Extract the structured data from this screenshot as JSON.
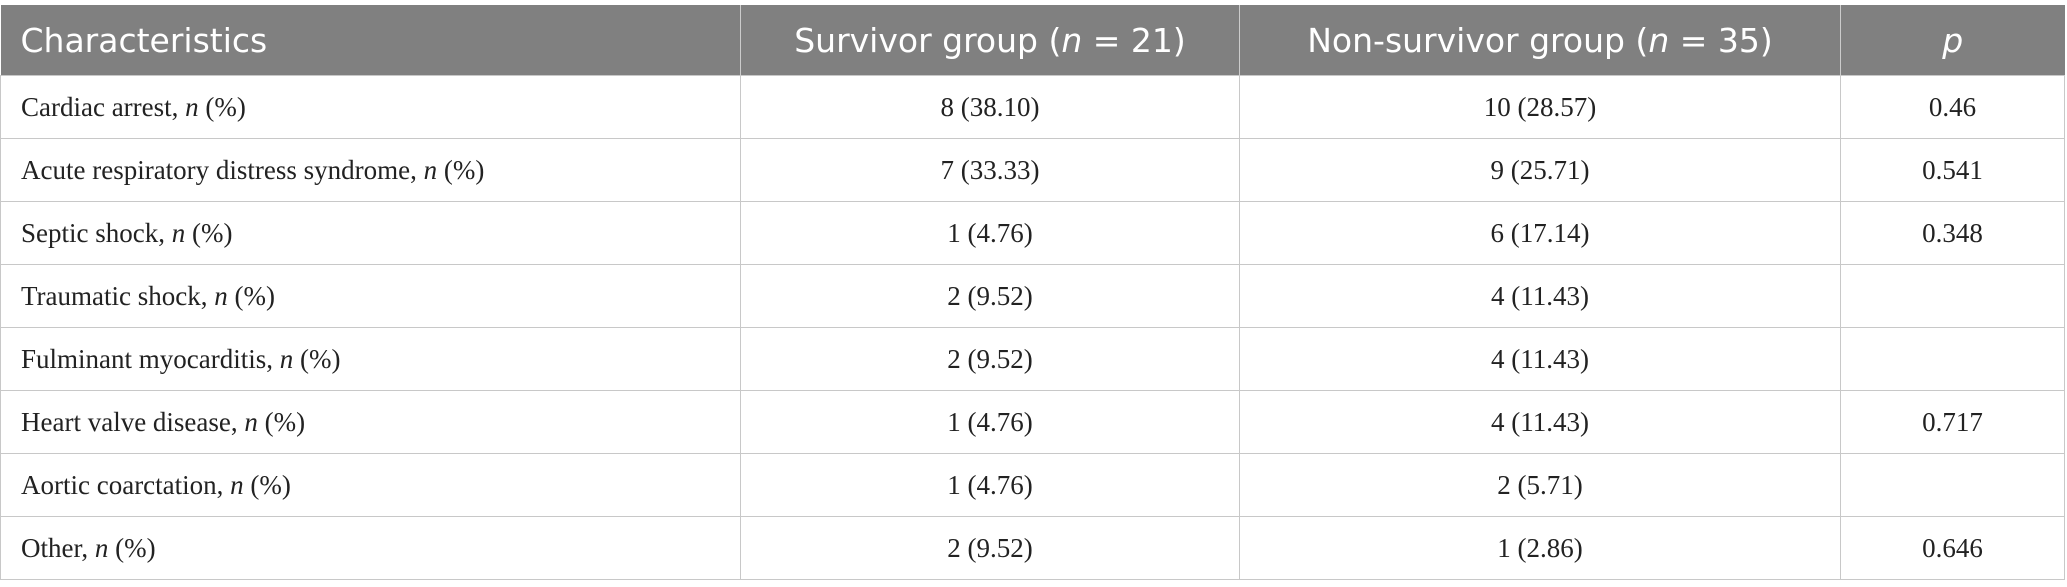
{
  "table": {
    "header": [
      [
        "Characteristics"
      ],
      [
        "Survivor group (",
        "n",
        " = 21)"
      ],
      [
        "Non-survivor group (",
        "n",
        " = 35)"
      ],
      [
        "",
        "p"
      ]
    ],
    "rows": [
      {
        "label": [
          "Cardiac arrest, ",
          "n",
          " (%)"
        ],
        "survivor": "8 (38.10)",
        "non_survivor": "10 (28.57)",
        "p": 0.46
      },
      {
        "label": [
          "Acute respiratory distress syndrome, ",
          "n",
          " (%)"
        ],
        "survivor": "7 (33.33)",
        "non_survivor": "9 (25.71)",
        "p": 0.541
      },
      {
        "label": [
          "Septic shock, ",
          "n",
          " (%)"
        ],
        "survivor": "1 (4.76)",
        "non_survivor": "6 (17.14)",
        "p": 0.348
      },
      {
        "label": [
          "Traumatic shock, ",
          "n",
          " (%)"
        ],
        "survivor": "2 (9.52)",
        "non_survivor": "4 (11.43)",
        "p": null
      },
      {
        "label": [
          "Fulminant myocarditis, ",
          "n",
          " (%)"
        ],
        "survivor": "2 (9.52)",
        "non_survivor": "4 (11.43)",
        "p": null
      },
      {
        "label": [
          "Heart valve disease, ",
          "n",
          " (%)"
        ],
        "survivor": "1 (4.76)",
        "non_survivor": "4 (11.43)",
        "p": 0.717
      },
      {
        "label": [
          "Aortic coarctation, ",
          "n",
          " (%)"
        ],
        "survivor": "1 (4.76)",
        "non_survivor": "2 (5.71)",
        "p": null
      },
      {
        "label": [
          "Other, ",
          "n",
          " (%)"
        ],
        "survivor": "2 (9.52)",
        "non_survivor": "1 (2.86)",
        "p": 0.646
      }
    ]
  }
}
